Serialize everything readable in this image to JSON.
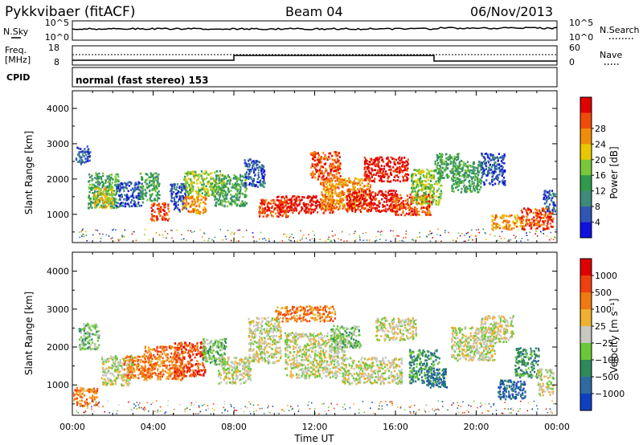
{
  "header": {
    "station": "Pykkvibaer (fitACF)",
    "beam": "Beam 04",
    "date": "06/Nov/2013"
  },
  "top_panels": {
    "nsky_label": "N.Sky",
    "nsearch_label": "N.Search",
    "nsky_ticks": [
      "10^5",
      "10^0"
    ],
    "nsearch_ticks": [
      "10^5",
      "10^0"
    ],
    "freq_label_1": "Freq.",
    "freq_label_2": "[MHz]",
    "freq_ticks": [
      "18",
      "8"
    ],
    "nave_label": "Nave",
    "nave_ticks": [
      "60",
      "0"
    ],
    "cpid_label": "CPID",
    "cpid_text": "normal (fast stereo) 153"
  },
  "chart_data": [
    {
      "type": "heatmap",
      "name": "power",
      "ylabel": "Slant Range [km]",
      "xlabel": "",
      "ylim": [
        200,
        4500
      ],
      "yticks": [
        "1000",
        "2000",
        "3000",
        "4000"
      ],
      "colorbar": {
        "label": "Power [dB]",
        "ticks": [
          "4",
          "8",
          "12",
          "16",
          "20",
          "24",
          "28"
        ],
        "colors": [
          "#1010e0",
          "#2f55b5",
          "#3f8a7a",
          "#2f9a4a",
          "#7ac83a",
          "#e8c800",
          "#f08c0a",
          "#f04a0a",
          "#e00000"
        ]
      },
      "blobs": [
        {
          "x": 0.5,
          "y": 2700,
          "w": 0.7,
          "h": 500,
          "c": 1
        },
        {
          "x": 1.5,
          "y": 1700,
          "w": 1.5,
          "h": 1000,
          "c": 3
        },
        {
          "x": 1.5,
          "y": 1500,
          "w": 1.0,
          "h": 600,
          "c": 5
        },
        {
          "x": 2.8,
          "y": 1600,
          "w": 1.3,
          "h": 700,
          "c": 1
        },
        {
          "x": 3.8,
          "y": 1800,
          "w": 1.0,
          "h": 800,
          "c": 3
        },
        {
          "x": 4.3,
          "y": 1100,
          "w": 0.9,
          "h": 500,
          "c": 7
        },
        {
          "x": 5.2,
          "y": 1500,
          "w": 0.8,
          "h": 800,
          "c": 1
        },
        {
          "x": 6.0,
          "y": 1300,
          "w": 1.2,
          "h": 500,
          "c": 6
        },
        {
          "x": 6.5,
          "y": 1900,
          "w": 2.0,
          "h": 700,
          "c": 4
        },
        {
          "x": 7.8,
          "y": 1700,
          "w": 1.6,
          "h": 900,
          "c": 3
        },
        {
          "x": 9.0,
          "y": 2200,
          "w": 1.0,
          "h": 800,
          "c": 1
        },
        {
          "x": 10.0,
          "y": 1200,
          "w": 1.6,
          "h": 500,
          "c": 7
        },
        {
          "x": 11.5,
          "y": 1300,
          "w": 2.8,
          "h": 500,
          "c": 8
        },
        {
          "x": 12.5,
          "y": 2400,
          "w": 1.5,
          "h": 800,
          "c": 7
        },
        {
          "x": 13.5,
          "y": 1600,
          "w": 2.5,
          "h": 900,
          "c": 6
        },
        {
          "x": 14.8,
          "y": 1400,
          "w": 2.5,
          "h": 600,
          "c": 8
        },
        {
          "x": 15.5,
          "y": 2300,
          "w": 2.2,
          "h": 700,
          "c": 8
        },
        {
          "x": 16.8,
          "y": 1300,
          "w": 2.0,
          "h": 600,
          "c": 7
        },
        {
          "x": 17.5,
          "y": 1800,
          "w": 1.5,
          "h": 1000,
          "c": 4
        },
        {
          "x": 18.5,
          "y": 2400,
          "w": 1.2,
          "h": 700,
          "c": 3
        },
        {
          "x": 19.5,
          "y": 2100,
          "w": 1.5,
          "h": 900,
          "c": 3
        },
        {
          "x": 20.8,
          "y": 2300,
          "w": 1.2,
          "h": 900,
          "c": 1
        },
        {
          "x": 21.5,
          "y": 800,
          "w": 1.5,
          "h": 400,
          "c": 6
        },
        {
          "x": 23.0,
          "y": 900,
          "w": 1.6,
          "h": 600,
          "c": 7
        },
        {
          "x": 23.6,
          "y": 1400,
          "w": 0.6,
          "h": 600,
          "c": 1
        }
      ]
    },
    {
      "type": "heatmap",
      "name": "velocity",
      "ylabel": "Slant Range [km]",
      "xlabel": "Time UT",
      "ylim": [
        200,
        4500
      ],
      "yticks": [
        "1000",
        "2000",
        "3000",
        "4000"
      ],
      "xticks": [
        "00:00",
        "04:00",
        "08:00",
        "12:00",
        "16:00",
        "20:00",
        "00:00"
      ],
      "colorbar": {
        "label": "Velocity [m s⁻¹]",
        "ticks": [
          "1000",
          "500",
          "100",
          "25",
          "−25",
          "−100",
          "−500",
          "−1000"
        ],
        "colors": [
          "#1040c0",
          "#2f6aa0",
          "#2f8a5a",
          "#6ac838",
          "#c8c8c0",
          "#f0b030",
          "#f07a10",
          "#f04010",
          "#e00000"
        ]
      },
      "blobs": [
        {
          "x": 0.6,
          "y": 700,
          "w": 1.2,
          "h": 500,
          "c": 6
        },
        {
          "x": 0.8,
          "y": 2300,
          "w": 1.0,
          "h": 700,
          "c": 3
        },
        {
          "x": 2.2,
          "y": 1400,
          "w": 1.6,
          "h": 800,
          "c": 4
        },
        {
          "x": 3.2,
          "y": 1500,
          "w": 1.4,
          "h": 600,
          "c": 6
        },
        {
          "x": 4.5,
          "y": 1600,
          "w": 2.0,
          "h": 900,
          "c": 6
        },
        {
          "x": 5.8,
          "y": 1700,
          "w": 1.6,
          "h": 900,
          "c": 7
        },
        {
          "x": 7.0,
          "y": 1900,
          "w": 1.2,
          "h": 700,
          "c": 3
        },
        {
          "x": 8.0,
          "y": 1400,
          "w": 1.6,
          "h": 700,
          "c": 4
        },
        {
          "x": 9.5,
          "y": 2200,
          "w": 1.6,
          "h": 1200,
          "c": 4
        },
        {
          "x": 11.5,
          "y": 2900,
          "w": 3.0,
          "h": 400,
          "c": 6
        },
        {
          "x": 12.0,
          "y": 1800,
          "w": 3.0,
          "h": 1200,
          "c": 4
        },
        {
          "x": 13.5,
          "y": 2300,
          "w": 1.5,
          "h": 600,
          "c": 3
        },
        {
          "x": 14.8,
          "y": 1400,
          "w": 3.0,
          "h": 700,
          "c": 4
        },
        {
          "x": 16.0,
          "y": 2500,
          "w": 2.0,
          "h": 600,
          "c": 4
        },
        {
          "x": 17.4,
          "y": 1500,
          "w": 1.5,
          "h": 900,
          "c": 2
        },
        {
          "x": 18.0,
          "y": 1200,
          "w": 1.0,
          "h": 500,
          "c": 1
        },
        {
          "x": 19.8,
          "y": 2100,
          "w": 2.2,
          "h": 900,
          "c": 4
        },
        {
          "x": 21.0,
          "y": 2500,
          "w": 1.6,
          "h": 700,
          "c": 4
        },
        {
          "x": 21.7,
          "y": 900,
          "w": 1.4,
          "h": 500,
          "c": 1
        },
        {
          "x": 22.5,
          "y": 1600,
          "w": 1.2,
          "h": 800,
          "c": 2
        },
        {
          "x": 23.4,
          "y": 1100,
          "w": 0.8,
          "h": 700,
          "c": 4
        }
      ]
    }
  ]
}
